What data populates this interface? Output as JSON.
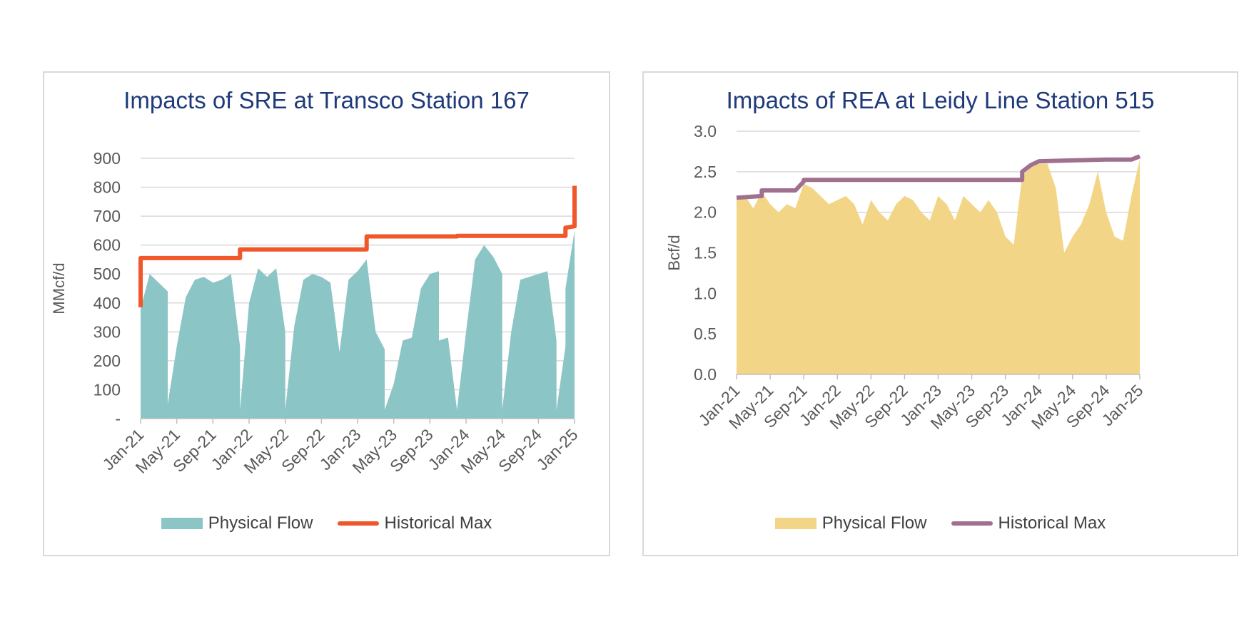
{
  "chart_data": [
    {
      "type": "area",
      "title": "Impacts of SRE at Transco Station 167",
      "ylabel": "MMcf/d",
      "xlabel": "",
      "ylim": [
        0,
        900
      ],
      "yticks": [
        0,
        100,
        200,
        300,
        400,
        500,
        600,
        700,
        800,
        900
      ],
      "ytick_labels": [
        "-",
        "100",
        "200",
        "300",
        "400",
        "500",
        "600",
        "700",
        "800",
        "900"
      ],
      "xticks": [
        "Jan-21",
        "May-21",
        "Sep-21",
        "Jan-22",
        "May-22",
        "Sep-22",
        "Jan-23",
        "May-23",
        "Sep-23",
        "Jan-24",
        "May-24",
        "Sep-24",
        "Jan-25"
      ],
      "grid": true,
      "legend": "bottom",
      "series": [
        {
          "name": "Physical Flow",
          "kind": "area",
          "color": "#8cc5c6",
          "points": [
            [
              "Jan-21",
              380
            ],
            [
              "Feb-21",
              500
            ],
            [
              "Mar-21",
              470
            ],
            [
              "Apr-21",
              440
            ],
            [
              "Apr-21",
              50
            ],
            [
              "May-21",
              250
            ],
            [
              "Jun-21",
              420
            ],
            [
              "Jul-21",
              480
            ],
            [
              "Aug-21",
              490
            ],
            [
              "Sep-21",
              470
            ],
            [
              "Oct-21",
              480
            ],
            [
              "Nov-21",
              500
            ],
            [
              "Dec-21",
              250
            ],
            [
              "Dec-21",
              30
            ],
            [
              "Jan-22",
              400
            ],
            [
              "Feb-22",
              520
            ],
            [
              "Mar-22",
              490
            ],
            [
              "Apr-22",
              520
            ],
            [
              "May-22",
              300
            ],
            [
              "May-22",
              30
            ],
            [
              "Jun-22",
              320
            ],
            [
              "Jul-22",
              480
            ],
            [
              "Aug-22",
              500
            ],
            [
              "Sep-22",
              490
            ],
            [
              "Oct-22",
              470
            ],
            [
              "Nov-22",
              230
            ],
            [
              "Dec-22",
              480
            ],
            [
              "Jan-23",
              510
            ],
            [
              "Feb-23",
              550
            ],
            [
              "Mar-23",
              300
            ],
            [
              "Apr-23",
              240
            ],
            [
              "Apr-23",
              30
            ],
            [
              "May-23",
              120
            ],
            [
              "Jun-23",
              270
            ],
            [
              "Jul-23",
              280
            ],
            [
              "Aug-23",
              450
            ],
            [
              "Sep-23",
              500
            ],
            [
              "Oct-23",
              510
            ],
            [
              "Oct-23",
              270
            ],
            [
              "Nov-23",
              280
            ],
            [
              "Dec-23",
              30
            ],
            [
              "Jan-24",
              300
            ],
            [
              "Feb-24",
              550
            ],
            [
              "Mar-24",
              600
            ],
            [
              "Apr-24",
              560
            ],
            [
              "May-24",
              500
            ],
            [
              "May-24",
              30
            ],
            [
              "Jun-24",
              300
            ],
            [
              "Jul-24",
              480
            ],
            [
              "Aug-24",
              490
            ],
            [
              "Sep-24",
              500
            ],
            [
              "Oct-24",
              510
            ],
            [
              "Nov-24",
              270
            ],
            [
              "Nov-24",
              30
            ],
            [
              "Dec-24",
              250
            ],
            [
              "Dec-24",
              450
            ],
            [
              "Jan-25",
              650
            ],
            [
              "Jan-25",
              0
            ]
          ]
        },
        {
          "name": "Historical Max",
          "kind": "line",
          "color": "#f0572a",
          "points": [
            [
              "Jan-21",
              385
            ],
            [
              "Jan-21",
              555
            ],
            [
              "Dec-21",
              555
            ],
            [
              "Dec-21",
              585
            ],
            [
              "Feb-23",
              585
            ],
            [
              "Feb-23",
              630
            ],
            [
              "Dec-23",
              630
            ],
            [
              "Dec-23",
              632
            ],
            [
              "Dec-24",
              632
            ],
            [
              "Dec-24",
              660
            ],
            [
              "Jan-25",
              665
            ],
            [
              "Jan-25",
              760
            ],
            [
              "Jan-25",
              805
            ]
          ]
        }
      ]
    },
    {
      "type": "area",
      "title": "Impacts of REA at Leidy Line Station 515",
      "ylabel": "Bcf/d",
      "xlabel": "",
      "ylim": [
        0,
        3
      ],
      "yticks": [
        0,
        0.5,
        1,
        1.5,
        2,
        2.5,
        3
      ],
      "ytick_labels": [
        "0.0",
        "0.5",
        "1.0",
        "1.5",
        "2.0",
        "2.5",
        "3.0"
      ],
      "xticks": [
        "Jan-21",
        "May-21",
        "Sep-21",
        "Jan-22",
        "May-22",
        "Sep-22",
        "Jan-23",
        "May-23",
        "Sep-23",
        "Jan-24",
        "May-24",
        "Sep-24",
        "Jan-25"
      ],
      "grid": true,
      "legend": "bottom",
      "series": [
        {
          "name": "Physical Flow",
          "kind": "area",
          "color": "#f3d587",
          "points": [
            [
              "Jan-21",
              2.15
            ],
            [
              "Feb-21",
              2.2
            ],
            [
              "Mar-21",
              2.05
            ],
            [
              "Apr-21",
              2.25
            ],
            [
              "May-21",
              2.1
            ],
            [
              "Jun-21",
              2.0
            ],
            [
              "Jul-21",
              2.1
            ],
            [
              "Aug-21",
              2.05
            ],
            [
              "Sep-21",
              2.35
            ],
            [
              "Oct-21",
              2.3
            ],
            [
              "Nov-21",
              2.2
            ],
            [
              "Dec-21",
              2.1
            ],
            [
              "Jan-22",
              2.15
            ],
            [
              "Feb-22",
              2.2
            ],
            [
              "Mar-22",
              2.1
            ],
            [
              "Apr-22",
              1.85
            ],
            [
              "May-22",
              2.15
            ],
            [
              "Jun-22",
              2.0
            ],
            [
              "Jul-22",
              1.9
            ],
            [
              "Aug-22",
              2.1
            ],
            [
              "Sep-22",
              2.2
            ],
            [
              "Oct-22",
              2.15
            ],
            [
              "Nov-22",
              2.0
            ],
            [
              "Dec-22",
              1.9
            ],
            [
              "Jan-23",
              2.2
            ],
            [
              "Feb-23",
              2.1
            ],
            [
              "Mar-23",
              1.9
            ],
            [
              "Apr-23",
              2.2
            ],
            [
              "May-23",
              2.1
            ],
            [
              "Jun-23",
              2.0
            ],
            [
              "Jul-23",
              2.15
            ],
            [
              "Aug-23",
              2.0
            ],
            [
              "Sep-23",
              1.7
            ],
            [
              "Oct-23",
              1.6
            ],
            [
              "Nov-23",
              2.45
            ],
            [
              "Dec-23",
              2.55
            ],
            [
              "Jan-24",
              2.6
            ],
            [
              "Feb-24",
              2.6
            ],
            [
              "Mar-24",
              2.3
            ],
            [
              "Apr-24",
              1.5
            ],
            [
              "May-24",
              1.7
            ],
            [
              "Jun-24",
              1.85
            ],
            [
              "Jul-24",
              2.1
            ],
            [
              "Aug-24",
              2.5
            ],
            [
              "Sep-24",
              2.0
            ],
            [
              "Oct-24",
              1.7
            ],
            [
              "Nov-24",
              1.65
            ],
            [
              "Dec-24",
              2.2
            ],
            [
              "Jan-25",
              2.65
            ]
          ]
        },
        {
          "name": "Historical Max",
          "kind": "line",
          "color": "#a0708f",
          "points": [
            [
              "Jan-21",
              2.18
            ],
            [
              "Apr-21",
              2.2
            ],
            [
              "Apr-21",
              2.27
            ],
            [
              "Aug-21",
              2.27
            ],
            [
              "Sep-21",
              2.38
            ],
            [
              "Sep-21",
              2.4
            ],
            [
              "Nov-23",
              2.4
            ],
            [
              "Nov-23",
              2.5
            ],
            [
              "Dec-23",
              2.58
            ],
            [
              "Jan-24",
              2.63
            ],
            [
              "May-24",
              2.64
            ],
            [
              "Sep-24",
              2.65
            ],
            [
              "Dec-24",
              2.65
            ],
            [
              "Jan-25",
              2.69
            ]
          ]
        }
      ]
    }
  ]
}
